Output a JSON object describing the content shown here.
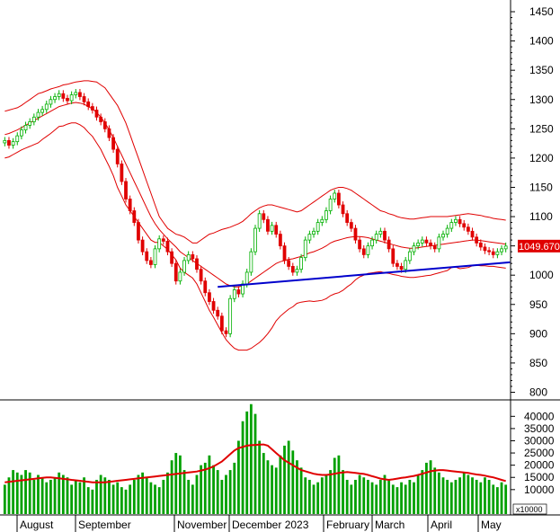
{
  "chart_data": [
    {
      "type": "candlestick",
      "ylim": [
        790,
        1470
      ],
      "yticks": [
        800,
        850,
        900,
        950,
        1000,
        1050,
        1100,
        1150,
        1200,
        1250,
        1300,
        1350,
        1400,
        1450
      ],
      "last_value_label": "1049.670",
      "colors": {
        "up": "#00b000",
        "down": "#e00000",
        "bands": "#e00000",
        "trendline": "#0000cc"
      },
      "close_series_note": "",
      "close": [
        1230,
        1222,
        1228,
        1238,
        1248,
        1256,
        1262,
        1270,
        1278,
        1283,
        1292,
        1300,
        1305,
        1310,
        1302,
        1298,
        1308,
        1312,
        1305,
        1296,
        1288,
        1282,
        1270,
        1262,
        1250,
        1235,
        1215,
        1190,
        1160,
        1130,
        1110,
        1090,
        1060,
        1040,
        1025,
        1018,
        1045,
        1062,
        1058,
        1040,
        1020,
        990,
        1005,
        1025,
        1035,
        1028,
        1010,
        990,
        970,
        955,
        940,
        930,
        905,
        900,
        960,
        975,
        968,
        985,
        1005,
        1040,
        1080,
        1105,
        1095,
        1075,
        1085,
        1070,
        1050,
        1025,
        1015,
        1005,
        1010,
        1030,
        1060,
        1070,
        1075,
        1090,
        1095,
        1110,
        1130,
        1140,
        1120,
        1105,
        1090,
        1080,
        1060,
        1045,
        1035,
        1050,
        1060,
        1070,
        1075,
        1060,
        1045,
        1020,
        1015,
        1010,
        1025,
        1040,
        1050,
        1055,
        1060,
        1055,
        1050,
        1045,
        1065,
        1070,
        1080,
        1090,
        1095,
        1088,
        1082,
        1075,
        1065,
        1055,
        1048,
        1042,
        1040,
        1035,
        1040,
        1045,
        1049.67
      ],
      "bollinger_upper": [
        1280,
        1282,
        1284,
        1286,
        1290,
        1295,
        1300,
        1305,
        1310,
        1312,
        1315,
        1318,
        1320,
        1322,
        1325,
        1326,
        1328,
        1330,
        1331,
        1332,
        1332,
        1331,
        1330,
        1325,
        1320,
        1310,
        1300,
        1290,
        1275,
        1260,
        1240,
        1220,
        1200,
        1180,
        1160,
        1140,
        1120,
        1100,
        1090,
        1080,
        1075,
        1070,
        1068,
        1065,
        1060,
        1055,
        1055,
        1060,
        1065,
        1070,
        1072,
        1075,
        1078,
        1080,
        1082,
        1085,
        1088,
        1092,
        1098,
        1105,
        1110,
        1115,
        1118,
        1120,
        1120,
        1118,
        1116,
        1114,
        1112,
        1110,
        1108,
        1110,
        1115,
        1120,
        1125,
        1130,
        1135,
        1140,
        1145,
        1148,
        1150,
        1150,
        1148,
        1145,
        1140,
        1135,
        1130,
        1125,
        1120,
        1115,
        1110,
        1108,
        1105,
        1103,
        1100,
        1098,
        1097,
        1096,
        1096,
        1097,
        1098,
        1099,
        1100,
        1100,
        1100,
        1100,
        1100,
        1101,
        1102,
        1103,
        1104,
        1105,
        1104,
        1103,
        1102,
        1100,
        1099,
        1097,
        1096,
        1095,
        1094
      ],
      "bollinger_middle": [
        1240,
        1242,
        1245,
        1248,
        1252,
        1256,
        1260,
        1264,
        1268,
        1272,
        1276,
        1280,
        1284,
        1288,
        1290,
        1292,
        1294,
        1295,
        1294,
        1292,
        1288,
        1284,
        1278,
        1270,
        1260,
        1248,
        1235,
        1220,
        1205,
        1190,
        1175,
        1160,
        1145,
        1130,
        1115,
        1100,
        1088,
        1078,
        1070,
        1062,
        1055,
        1048,
        1040,
        1035,
        1030,
        1025,
        1020,
        1015,
        1010,
        1005,
        1000,
        995,
        990,
        985,
        982,
        980,
        980,
        982,
        985,
        990,
        995,
        1000,
        1005,
        1010,
        1015,
        1020,
        1023,
        1025,
        1027,
        1028,
        1030,
        1032,
        1035,
        1038,
        1040,
        1043,
        1046,
        1050,
        1055,
        1058,
        1060,
        1062,
        1064,
        1065,
        1066,
        1066,
        1065,
        1064,
        1062,
        1060,
        1058,
        1056,
        1054,
        1052,
        1050,
        1048,
        1047,
        1046,
        1046,
        1047,
        1048,
        1049,
        1050,
        1051,
        1052,
        1053,
        1054,
        1055,
        1056,
        1057,
        1058,
        1059,
        1060,
        1060,
        1059,
        1058,
        1057,
        1056,
        1055,
        1054,
        1053
      ],
      "bollinger_lower": [
        1200,
        1202,
        1206,
        1210,
        1214,
        1217,
        1220,
        1223,
        1226,
        1232,
        1237,
        1242,
        1248,
        1254,
        1255,
        1258,
        1260,
        1260,
        1257,
        1252,
        1244,
        1237,
        1226,
        1215,
        1200,
        1186,
        1170,
        1150,
        1135,
        1120,
        1110,
        1100,
        1090,
        1080,
        1070,
        1060,
        1056,
        1056,
        1050,
        1044,
        1035,
        1026,
        1012,
        1005,
        1000,
        995,
        985,
        970,
        955,
        940,
        928,
        915,
        902,
        890,
        882,
        875,
        872,
        872,
        872,
        875,
        880,
        885,
        892,
        900,
        910,
        922,
        930,
        936,
        942,
        946,
        952,
        954,
        955,
        956,
        955,
        956,
        957,
        960,
        965,
        968,
        970,
        974,
        980,
        985,
        992,
        997,
        1000,
        1003,
        1004,
        1005,
        1006,
        1004,
        1003,
        1001,
        1000,
        998,
        997,
        996,
        996,
        997,
        998,
        999,
        1000,
        1002,
        1004,
        1006,
        1008,
        1013,
        1014,
        1011,
        1012,
        1013,
        1016,
        1017,
        1016,
        1016,
        1015,
        1015,
        1014,
        1013,
        1012
      ],
      "trendline": {
        "start": {
          "index": 51,
          "value": 980
        },
        "end": {
          "index": 121,
          "value": 1022
        }
      }
    },
    {
      "type": "bar",
      "ylim": [
        0,
        46000
      ],
      "yticks": [
        10000,
        15000,
        20000,
        25000,
        30000,
        35000,
        40000
      ],
      "multiplier_label": "x10000",
      "moving_average_color": "#e00000",
      "values": [
        12000,
        15000,
        18000,
        17000,
        16000,
        18000,
        17000,
        14000,
        16000,
        15000,
        13000,
        14000,
        15000,
        17000,
        16000,
        15000,
        12000,
        14000,
        13000,
        15000,
        11000,
        10000,
        14000,
        16000,
        15000,
        14000,
        12000,
        13000,
        11000,
        10000,
        12000,
        14000,
        16000,
        17000,
        15000,
        13000,
        12000,
        11000,
        14000,
        17000,
        22000,
        25000,
        24000,
        18000,
        14000,
        12000,
        16000,
        20000,
        21000,
        24000,
        20000,
        18000,
        14000,
        16000,
        18000,
        21000,
        30000,
        38000,
        42000,
        45000,
        41000,
        30000,
        25000,
        22000,
        20000,
        19000,
        24000,
        28000,
        30000,
        26000,
        22000,
        19000,
        15000,
        14000,
        12000,
        13000,
        15000,
        16000,
        18000,
        23000,
        24000,
        18000,
        14000,
        12000,
        14000,
        16000,
        15000,
        14000,
        13000,
        12000,
        14000,
        16000,
        14000,
        12000,
        11000,
        13000,
        12000,
        14000,
        13000,
        16000,
        18000,
        21000,
        22000,
        19000,
        17000,
        15000,
        14000,
        13000,
        14000,
        15000,
        17000,
        16000,
        15000,
        14000,
        13000,
        15000,
        14000,
        12000,
        11000,
        13000,
        12000
      ],
      "moving_average": [
        13000,
        13200,
        13400,
        13600,
        13800,
        14000,
        14200,
        14400,
        14600,
        14800,
        15000,
        15000,
        14800,
        14600,
        14400,
        14200,
        14000,
        13800,
        13600,
        13400,
        13200,
        13000,
        13000,
        13000,
        13000,
        13200,
        13400,
        13600,
        13800,
        14000,
        14200,
        14400,
        14600,
        14800,
        15000,
        15200,
        15400,
        15600,
        15800,
        16000,
        16200,
        16400,
        16600,
        16800,
        17000,
        17200,
        17400,
        17800,
        18200,
        18800,
        19500,
        20500,
        21500,
        23000,
        24500,
        26000,
        27000,
        27500,
        28000,
        28200,
        28300,
        28400,
        28500,
        28000,
        26500,
        25000,
        23500,
        22000,
        21000,
        20000,
        19000,
        18000,
        17500,
        17000,
        16500,
        16200,
        16000,
        16000,
        16200,
        16500,
        16800,
        17000,
        17200,
        17000,
        16800,
        16600,
        16400,
        16000,
        15500,
        15000,
        14500,
        14200,
        14000,
        14200,
        14500,
        14800,
        15000,
        15300,
        15600,
        16000,
        16500,
        17000,
        17500,
        17800,
        18000,
        18000,
        17800,
        17600,
        17400,
        17200,
        17000,
        16800,
        16500,
        16200,
        16000,
        15700,
        15300,
        15000,
        14500,
        14000,
        13500
      ]
    }
  ],
  "x_axis": {
    "labels": [
      "August",
      "September",
      "November",
      "December 2023",
      "February",
      "March",
      "April",
      "May"
    ]
  }
}
